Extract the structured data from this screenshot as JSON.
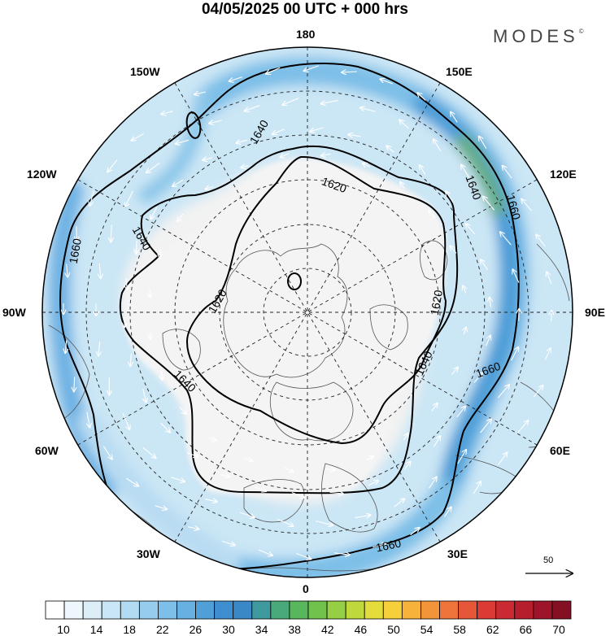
{
  "title": "04/05/2025  00 UTC  + 000 hrs",
  "brand": {
    "name": "MODES",
    "mark": "©"
  },
  "longitude_labels": {
    "north": "180",
    "south": "0",
    "east": "90E",
    "west": "90W",
    "ne_upper": "150E",
    "ne_lower": "120E",
    "se_upper": "60E",
    "se_lower": "30E",
    "nw_upper": "150W",
    "nw_lower": "120W",
    "sw_upper": "60W",
    "sw_lower": "30W"
  },
  "contour_labels": [
    "1620",
    "1640",
    "1660"
  ],
  "reference_vector": {
    "value": "50"
  },
  "colorbar": {
    "labels": [
      "10",
      "14",
      "18",
      "22",
      "26",
      "30",
      "34",
      "38",
      "42",
      "46",
      "50",
      "54",
      "58",
      "62",
      "66",
      "70"
    ],
    "colors": [
      "#ffffff",
      "#eef7fc",
      "#dceff9",
      "#c8e6f6",
      "#b0dbf2",
      "#96cdee",
      "#7ebfe9",
      "#66b0e2",
      "#509fd9",
      "#3f8ed0",
      "#3a89c6",
      "#3f9aa0",
      "#4aa97a",
      "#58b75c",
      "#6fc24c",
      "#96cf44",
      "#bfd93d",
      "#e4dc3a",
      "#f6cf3a",
      "#f6b23a",
      "#f3933a",
      "#ee743a",
      "#e65638",
      "#dc3b35",
      "#cc2a32",
      "#b61e2e",
      "#9e1429",
      "#861023"
    ]
  }
}
